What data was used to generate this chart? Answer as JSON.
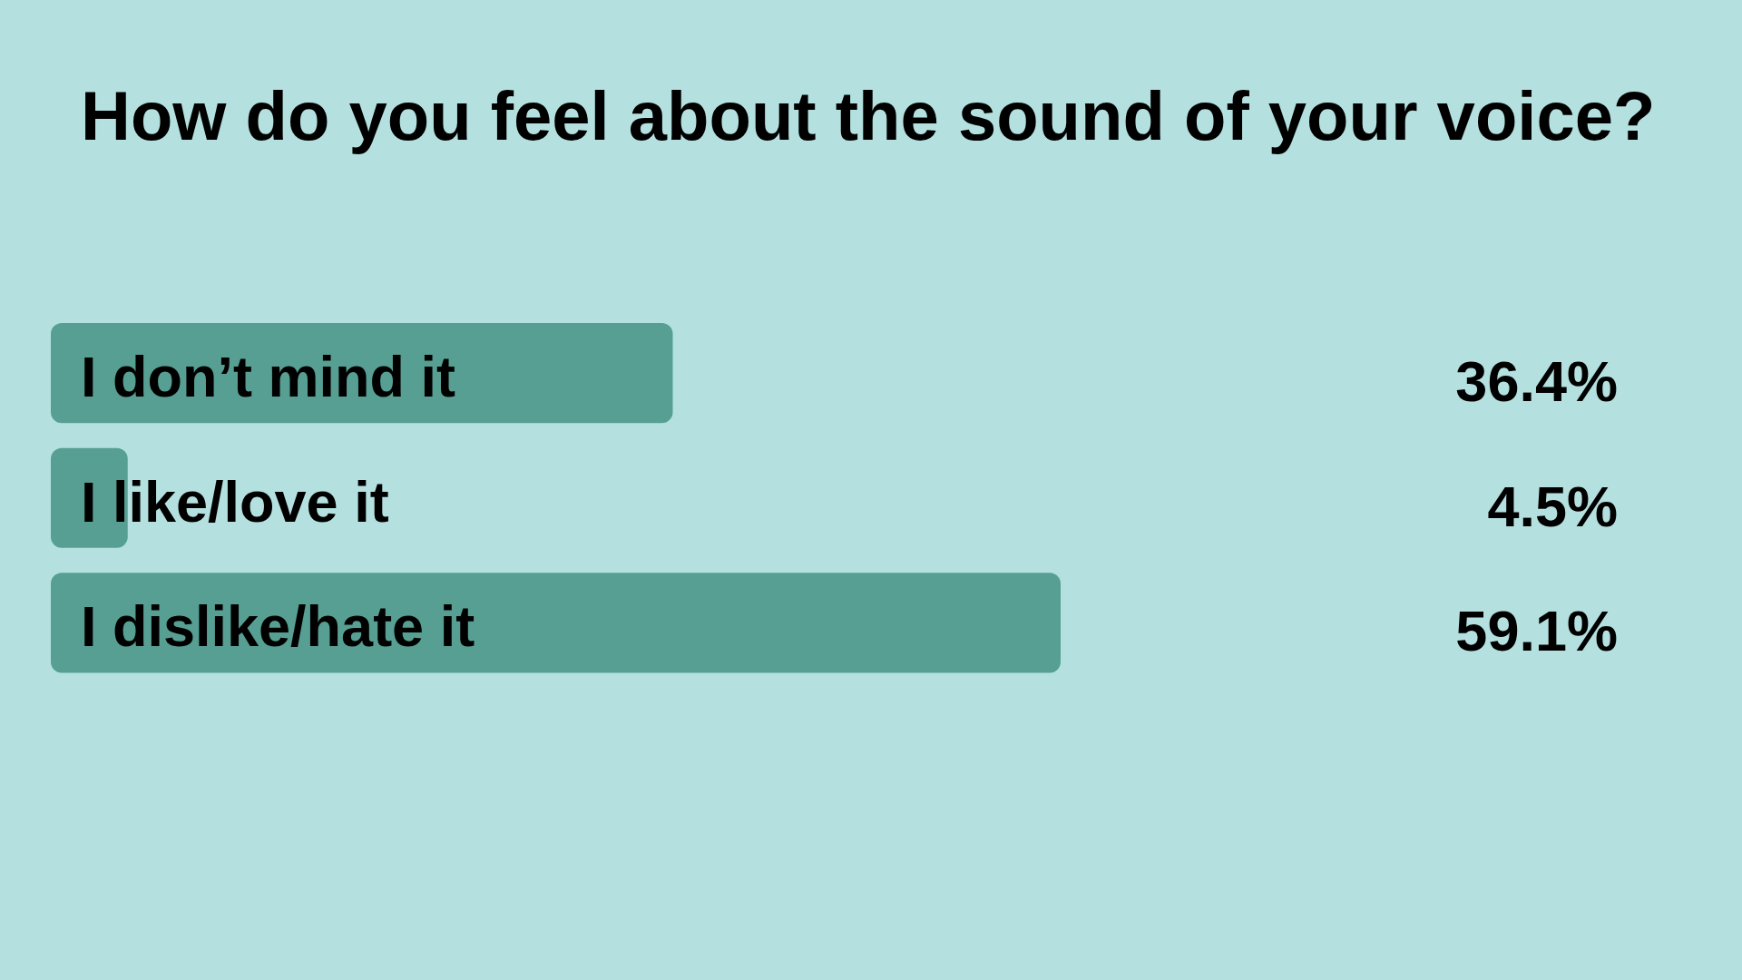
{
  "chart_data": {
    "type": "bar",
    "orientation": "horizontal",
    "title": "How do you feel about the sound of your voice?",
    "categories": [
      "I don’t mind it",
      "I like/love it",
      "I dislike/hate it"
    ],
    "values": [
      36.4,
      4.5,
      59.1
    ],
    "value_labels": [
      "36.4%",
      "4.5%",
      "59.1%"
    ],
    "color": "#579f93"
  }
}
